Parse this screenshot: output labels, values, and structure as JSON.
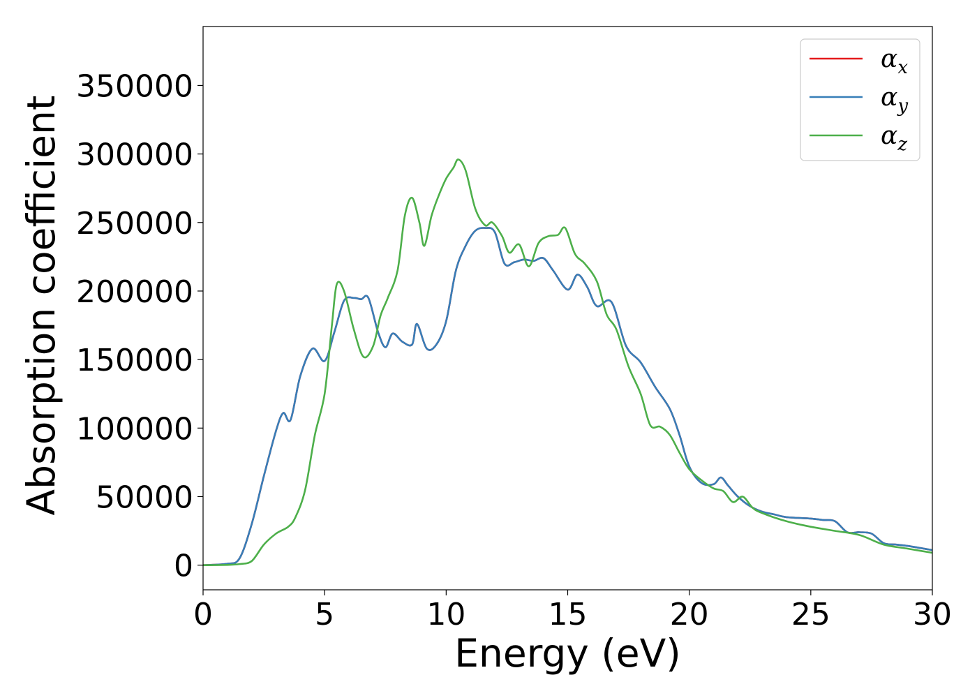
{
  "chart_data": {
    "type": "line",
    "title": "",
    "xlabel": "Energy (eV)",
    "ylabel": "Absorption coefficient",
    "xlim": [
      0,
      30
    ],
    "ylim": [
      -18000,
      393000
    ],
    "xticks": [
      0,
      5,
      10,
      15,
      20,
      25,
      30
    ],
    "yticks": [
      0,
      50000,
      100000,
      150000,
      200000,
      250000,
      300000,
      350000
    ],
    "grid": false,
    "legend_position": "top-right",
    "series": [
      {
        "name": "αx",
        "legend_main": "α",
        "legend_sub": "x",
        "color": "#e41a1c",
        "points": [
          [
            0,
            0
          ],
          [
            1,
            1000
          ],
          [
            1.5,
            5000
          ],
          [
            2,
            30000
          ],
          [
            2.5,
            65000
          ],
          [
            3,
            98000
          ],
          [
            3.3,
            111000
          ],
          [
            3.6,
            106000
          ],
          [
            4,
            138000
          ],
          [
            4.5,
            158000
          ],
          [
            5,
            149000
          ],
          [
            5.4,
            170000
          ],
          [
            5.8,
            193000
          ],
          [
            6.2,
            195000
          ],
          [
            6.5,
            194000
          ],
          [
            6.8,
            195000
          ],
          [
            7.2,
            170000
          ],
          [
            7.5,
            159000
          ],
          [
            7.8,
            169000
          ],
          [
            8.2,
            163000
          ],
          [
            8.6,
            161000
          ],
          [
            8.8,
            176000
          ],
          [
            9.2,
            158000
          ],
          [
            9.6,
            161000
          ],
          [
            10,
            178000
          ],
          [
            10.4,
            215000
          ],
          [
            10.8,
            233000
          ],
          [
            11.2,
            244000
          ],
          [
            11.6,
            246000
          ],
          [
            12,
            243000
          ],
          [
            12.4,
            220000
          ],
          [
            12.8,
            221000
          ],
          [
            13.2,
            223000
          ],
          [
            13.6,
            222000
          ],
          [
            14,
            224000
          ],
          [
            14.4,
            215000
          ],
          [
            15,
            201000
          ],
          [
            15.4,
            212000
          ],
          [
            15.8,
            203000
          ],
          [
            16.2,
            189000
          ],
          [
            16.8,
            192000
          ],
          [
            17.4,
            160000
          ],
          [
            18,
            148000
          ],
          [
            18.6,
            130000
          ],
          [
            19.2,
            114000
          ],
          [
            19.6,
            95000
          ],
          [
            20,
            72000
          ],
          [
            20.5,
            60000
          ],
          [
            21,
            59000
          ],
          [
            21.3,
            64000
          ],
          [
            21.6,
            58000
          ],
          [
            22,
            50000
          ],
          [
            22.5,
            43000
          ],
          [
            23,
            39000
          ],
          [
            23.5,
            37000
          ],
          [
            24,
            35000
          ],
          [
            25,
            34000
          ],
          [
            25.5,
            33000
          ],
          [
            26,
            32000
          ],
          [
            26.5,
            24000
          ],
          [
            27,
            24000
          ],
          [
            27.5,
            23000
          ],
          [
            28,
            16000
          ],
          [
            28.5,
            15000
          ],
          [
            29,
            14000
          ],
          [
            30,
            11000
          ]
        ]
      },
      {
        "name": "αy",
        "legend_main": "α",
        "legend_sub": "y",
        "color": "#377eb8",
        "points": [
          [
            0,
            0
          ],
          [
            1,
            1000
          ],
          [
            1.5,
            5000
          ],
          [
            2,
            30000
          ],
          [
            2.5,
            65000
          ],
          [
            3,
            98000
          ],
          [
            3.3,
            111000
          ],
          [
            3.6,
            106000
          ],
          [
            4,
            138000
          ],
          [
            4.5,
            158000
          ],
          [
            5,
            149000
          ],
          [
            5.4,
            170000
          ],
          [
            5.8,
            193000
          ],
          [
            6.2,
            195000
          ],
          [
            6.5,
            194000
          ],
          [
            6.8,
            195000
          ],
          [
            7.2,
            170000
          ],
          [
            7.5,
            159000
          ],
          [
            7.8,
            169000
          ],
          [
            8.2,
            163000
          ],
          [
            8.6,
            161000
          ],
          [
            8.8,
            176000
          ],
          [
            9.2,
            158000
          ],
          [
            9.6,
            161000
          ],
          [
            10,
            178000
          ],
          [
            10.4,
            215000
          ],
          [
            10.8,
            233000
          ],
          [
            11.2,
            244000
          ],
          [
            11.6,
            246000
          ],
          [
            12,
            243000
          ],
          [
            12.4,
            220000
          ],
          [
            12.8,
            221000
          ],
          [
            13.2,
            223000
          ],
          [
            13.6,
            222000
          ],
          [
            14,
            224000
          ],
          [
            14.4,
            215000
          ],
          [
            15,
            201000
          ],
          [
            15.4,
            212000
          ],
          [
            15.8,
            203000
          ],
          [
            16.2,
            189000
          ],
          [
            16.8,
            192000
          ],
          [
            17.4,
            160000
          ],
          [
            18,
            148000
          ],
          [
            18.6,
            130000
          ],
          [
            19.2,
            114000
          ],
          [
            19.6,
            95000
          ],
          [
            20,
            72000
          ],
          [
            20.5,
            60000
          ],
          [
            21,
            59000
          ],
          [
            21.3,
            64000
          ],
          [
            21.6,
            58000
          ],
          [
            22,
            50000
          ],
          [
            22.5,
            43000
          ],
          [
            23,
            39000
          ],
          [
            23.5,
            37000
          ],
          [
            24,
            35000
          ],
          [
            25,
            34000
          ],
          [
            25.5,
            33000
          ],
          [
            26,
            32000
          ],
          [
            26.5,
            24000
          ],
          [
            27,
            24000
          ],
          [
            27.5,
            23000
          ],
          [
            28,
            16000
          ],
          [
            28.5,
            15000
          ],
          [
            29,
            14000
          ],
          [
            30,
            11000
          ]
        ]
      },
      {
        "name": "αz",
        "legend_main": "α",
        "legend_sub": "z",
        "color": "#4daf4a",
        "points": [
          [
            0,
            0
          ],
          [
            1,
            200
          ],
          [
            1.5,
            800
          ],
          [
            2,
            3000
          ],
          [
            2.5,
            15000
          ],
          [
            3,
            23000
          ],
          [
            3.5,
            28000
          ],
          [
            3.8,
            35000
          ],
          [
            4.2,
            55000
          ],
          [
            4.6,
            95000
          ],
          [
            5,
            125000
          ],
          [
            5.3,
            175000
          ],
          [
            5.5,
            205000
          ],
          [
            5.8,
            200000
          ],
          [
            6.2,
            172000
          ],
          [
            6.6,
            152000
          ],
          [
            7,
            160000
          ],
          [
            7.3,
            182000
          ],
          [
            7.6,
            195000
          ],
          [
            8,
            215000
          ],
          [
            8.3,
            255000
          ],
          [
            8.6,
            268000
          ],
          [
            8.9,
            250000
          ],
          [
            9.1,
            233000
          ],
          [
            9.4,
            255000
          ],
          [
            9.7,
            270000
          ],
          [
            10,
            282000
          ],
          [
            10.3,
            290000
          ],
          [
            10.5,
            296000
          ],
          [
            10.8,
            288000
          ],
          [
            11.2,
            260000
          ],
          [
            11.6,
            248000
          ],
          [
            11.9,
            250000
          ],
          [
            12.3,
            240000
          ],
          [
            12.6,
            228000
          ],
          [
            13,
            234000
          ],
          [
            13.4,
            218000
          ],
          [
            13.8,
            235000
          ],
          [
            14.2,
            240000
          ],
          [
            14.6,
            241000
          ],
          [
            14.9,
            246000
          ],
          [
            15.3,
            227000
          ],
          [
            15.7,
            220000
          ],
          [
            16.2,
            207000
          ],
          [
            16.6,
            183000
          ],
          [
            17,
            172000
          ],
          [
            17.5,
            145000
          ],
          [
            18,
            125000
          ],
          [
            18.4,
            102000
          ],
          [
            18.8,
            101000
          ],
          [
            19.2,
            95000
          ],
          [
            19.6,
            82000
          ],
          [
            20,
            70000
          ],
          [
            20.5,
            62000
          ],
          [
            21,
            56000
          ],
          [
            21.4,
            54000
          ],
          [
            21.8,
            46000
          ],
          [
            22.2,
            50000
          ],
          [
            22.6,
            42000
          ],
          [
            23,
            38000
          ],
          [
            24,
            32000
          ],
          [
            25,
            28000
          ],
          [
            26,
            25000
          ],
          [
            27,
            22000
          ],
          [
            28,
            15000
          ],
          [
            29,
            12000
          ],
          [
            30,
            9000
          ]
        ]
      }
    ]
  }
}
